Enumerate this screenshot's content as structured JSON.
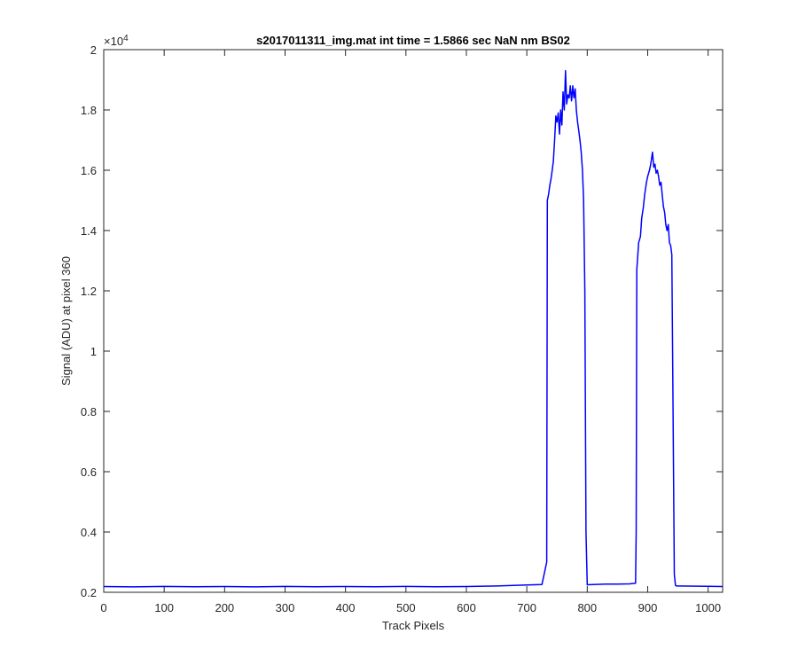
{
  "chart_data": {
    "type": "line",
    "title": "s2017011311_img.mat int time = 1.5866 sec  NaN nm BS02",
    "xlabel": "Track Pixels",
    "ylabel": "Signal (ADU) at pixel 360",
    "xlim": [
      0,
      1024
    ],
    "ylim": [
      2000,
      20000
    ],
    "exponent_label": "×10",
    "exponent_power": "4",
    "x_ticks": [
      0,
      100,
      200,
      300,
      400,
      500,
      600,
      700,
      800,
      900,
      1000
    ],
    "x_tick_labels": [
      "0",
      "100",
      "200",
      "300",
      "400",
      "500",
      "600",
      "700",
      "800",
      "900",
      "1000"
    ],
    "y_ticks": [
      2000,
      4000,
      6000,
      8000,
      10000,
      12000,
      14000,
      16000,
      18000,
      20000
    ],
    "y_tick_labels": [
      "0.2",
      "0.4",
      "0.6",
      "0.8",
      "1",
      "1.2",
      "1.4",
      "1.6",
      "1.8",
      "2"
    ],
    "grid": false,
    "line_color": "#0000ff",
    "series": [
      {
        "x": [
          0,
          50,
          100,
          150,
          200,
          250,
          300,
          350,
          400,
          450,
          500,
          550,
          600,
          650,
          700,
          725,
          733,
          734,
          736,
          738,
          740,
          742,
          744,
          746,
          748,
          750,
          752,
          754,
          756,
          758,
          760,
          762,
          764,
          766,
          768,
          770,
          772,
          774,
          776,
          778,
          780,
          782,
          784,
          786,
          788,
          790,
          792,
          794,
          796,
          798,
          800,
          810,
          830,
          850,
          870,
          880,
          881,
          882,
          883,
          885,
          888,
          890,
          893,
          895,
          898,
          900,
          903,
          905,
          908,
          910,
          912,
          914,
          916,
          918,
          920,
          922,
          924,
          926,
          928,
          930,
          932,
          934,
          936,
          938,
          940,
          942,
          944,
          946,
          948,
          950,
          1000,
          1024
        ],
        "y": [
          2190,
          2180,
          2195,
          2185,
          2190,
          2180,
          2195,
          2185,
          2190,
          2185,
          2195,
          2185,
          2190,
          2210,
          2240,
          2260,
          3000,
          15000,
          15200,
          15500,
          15700,
          16000,
          16300,
          17000,
          17800,
          17600,
          17900,
          17200,
          18000,
          17500,
          18600,
          18000,
          19300,
          18200,
          18500,
          18400,
          18800,
          18300,
          18800,
          18400,
          18700,
          18000,
          17600,
          17300,
          17000,
          16600,
          16000,
          15000,
          12000,
          4000,
          2250,
          2260,
          2270,
          2270,
          2280,
          2300,
          4000,
          12700,
          13000,
          13600,
          13800,
          14400,
          14800,
          15200,
          15600,
          15800,
          16000,
          16200,
          16600,
          16100,
          16200,
          15900,
          16000,
          15800,
          15500,
          15600,
          15200,
          14800,
          14600,
          14200,
          14000,
          14200,
          13600,
          13500,
          13200,
          8000,
          2600,
          2230,
          2210,
          2210,
          2200,
          2190
        ]
      }
    ]
  }
}
